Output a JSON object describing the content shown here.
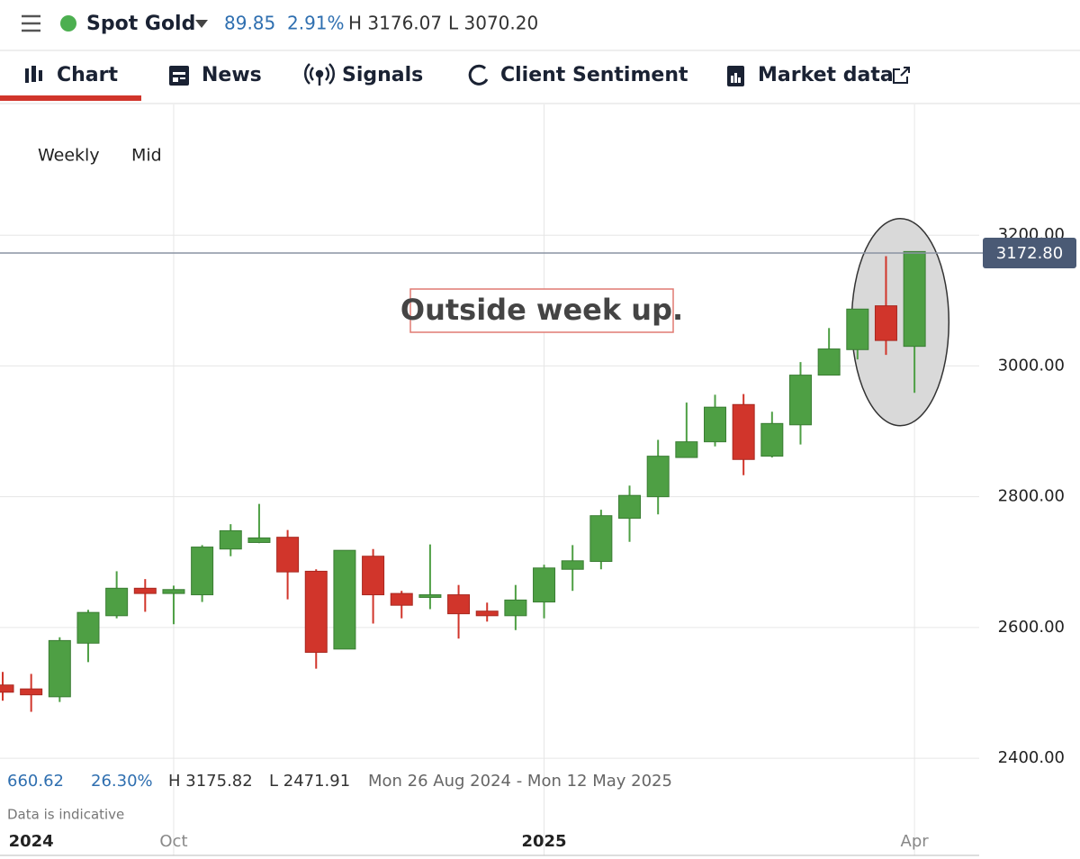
{
  "header": {
    "instrument": "Spot Gold",
    "change": "89.85",
    "change_pct": "2.91%",
    "high": "H 3176.07",
    "low": "L 3070.20"
  },
  "tabs": [
    "Chart",
    "News",
    "Signals",
    "Client Sentiment",
    "Market data"
  ],
  "controls": [
    "Weekly",
    "Mid"
  ],
  "stats": {
    "change": "660.62",
    "change_pct": "26.30%",
    "high": "H 3175.82",
    "low": "L 2471.91",
    "range": "Mon 26 Aug 2024 - Mon 12 May 2025"
  },
  "footnote": "Data is indicative",
  "chart_data": {
    "type": "candlestick",
    "categories": [
      null,
      "2024",
      null,
      null,
      null,
      null,
      "Oct",
      null,
      null,
      null,
      null,
      null,
      null,
      null,
      null,
      null,
      null,
      null,
      null,
      "2025",
      null,
      null,
      null,
      null,
      null,
      null,
      null,
      null,
      null,
      null,
      null,
      null,
      "Apr"
    ],
    "open": [
      2512,
      2506,
      2494,
      2576,
      2618,
      2660,
      2652,
      2650,
      2720,
      2730,
      2738,
      2686,
      2567,
      2709,
      2652,
      2646,
      2650,
      2625,
      2618,
      2639,
      2689,
      2701,
      2767,
      2800,
      2860,
      2884,
      2941,
      2862,
      2910,
      2986,
      3025,
      3092,
      3030
    ],
    "high": [
      2532,
      2529,
      2585,
      2627,
      2686,
      2674,
      2664,
      2726,
      2758,
      2789,
      2749,
      2689,
      2718,
      2720,
      2656,
      2727,
      2665,
      2638,
      2665,
      2696,
      2726,
      2780,
      2817,
      2887,
      2944,
      2956,
      2957,
      2930,
      3006,
      3058,
      3087,
      3168,
      3175
    ],
    "low": [
      2488,
      2471,
      2486,
      2547,
      2614,
      2624,
      2605,
      2639,
      2709,
      2729,
      2643,
      2537,
      2567,
      2606,
      2614,
      2628,
      2583,
      2609,
      2596,
      2614,
      2656,
      2689,
      2731,
      2773,
      2860,
      2877,
      2833,
      2860,
      2880,
      2986,
      3010,
      3017,
      2959
    ],
    "close": [
      2501,
      2497,
      2580,
      2623,
      2660,
      2652,
      2658,
      2723,
      2748,
      2737,
      2685,
      2562,
      2718,
      2650,
      2634,
      2650,
      2621,
      2618,
      2642,
      2691,
      2702,
      2771,
      2802,
      2862,
      2884,
      2937,
      2857,
      2912,
      2986,
      3026,
      3087,
      3039,
      3175
    ],
    "up_color": "#4e9f44",
    "down_color": "#d1352b",
    "ylim": [
      2250,
      3400
    ],
    "yticks": [
      {
        "value": 2400,
        "label": "2400.00"
      },
      {
        "value": 2600,
        "label": "2600.00"
      },
      {
        "value": 2800,
        "label": "2800.00"
      },
      {
        "value": 3000,
        "label": "3000.00"
      },
      {
        "value": 3200,
        "label": "3200.00"
      }
    ],
    "grid": true,
    "last_price": {
      "value": 3172.8,
      "label": "3172.80"
    },
    "annotation": "Outside week up."
  }
}
